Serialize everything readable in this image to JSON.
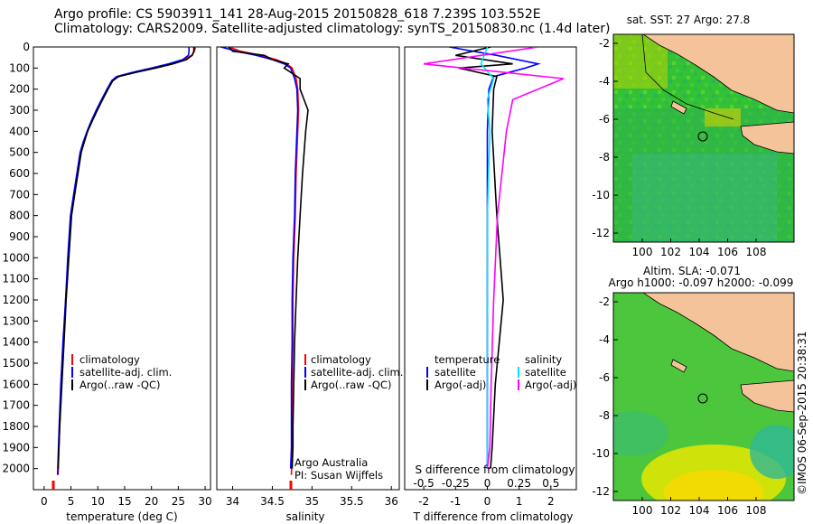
{
  "titles": {
    "line1": "Argo profile: CS 5903911_141 28-Aug-2015 20150828_618 7.239S 103.552E",
    "line2": "Climatology: CARS2009. Satellite-adjusted climatology: synTS_20150830.nc (1.4d later)"
  },
  "colors": {
    "climatology": "#ff0000",
    "satellite": "#0000ff",
    "argo": "#000000",
    "sat_salinity": "#00e5ff",
    "argo_salinity_diff": "#ff00ff",
    "land": "#f5c39a"
  },
  "panels": {
    "temperature": {
      "xlabel": "temperature (deg C)",
      "xticks": [
        "0",
        "5",
        "10",
        "15",
        "20",
        "25",
        "30"
      ],
      "legend": [
        "climatology",
        "satellite-adj. clim.",
        "Argo(..raw -QC)"
      ]
    },
    "salinity": {
      "xlabel": "salinity",
      "xticks": [
        "34",
        "34.5",
        "35",
        "35.5",
        "36"
      ],
      "legend": [
        "climatology",
        "satellite-adj. clim.",
        "Argo(..raw -QC)"
      ],
      "note1": "Argo Australia",
      "note2": "PI: Susan Wijffels"
    },
    "difference": {
      "xlabel": "T difference from climatology",
      "xticks": [
        "-2",
        "-1",
        "0",
        "1",
        "2"
      ],
      "top_label": "S difference from climatology",
      "top_ticks": [
        "-0.5",
        "-0.25",
        "0",
        "0.25",
        "0.5"
      ],
      "legend_temp_title": "temperature",
      "legend_sal_title": "salinity",
      "legend_temp": [
        "satellite",
        "Argo(-adj)"
      ],
      "legend_sal": [
        "satellite",
        "Argo(-adj)"
      ]
    },
    "yticks": [
      "0",
      "100",
      "200",
      "300",
      "400",
      "500",
      "600",
      "700",
      "800",
      "900",
      "1000",
      "1100",
      "1200",
      "1300",
      "1400",
      "1500",
      "1600",
      "1700",
      "1800",
      "1900",
      "2000"
    ],
    "map_sst": {
      "title": "sat. SST: 27 Argo: 27.8",
      "yticks": [
        "-2",
        "-4",
        "-6",
        "-8",
        "-10",
        "-12"
      ],
      "xticks": [
        "100",
        "102",
        "104",
        "106",
        "108"
      ]
    },
    "map_sla": {
      "title1": "Altim. SLA: -0.071",
      "title2": "Argo h1000: -0.097 h2000: -0.099",
      "yticks": [
        "-2",
        "-4",
        "-6",
        "-8",
        "-10",
        "-12"
      ],
      "xticks": [
        "100",
        "102",
        "104",
        "106",
        "108"
      ]
    },
    "footer": "©IMOS 06-Sep-2015 20:38:31"
  },
  "chart_data": [
    {
      "type": "line",
      "xlabel": "temperature (deg C)",
      "xlim": [
        -2,
        31
      ],
      "ylim": [
        2100,
        0
      ],
      "series": [
        {
          "name": "climatology",
          "x": [
            28.2,
            28.0,
            27.5,
            26.0,
            23.5,
            20.5,
            17.0,
            13.8,
            12.7,
            11.8,
            10.8,
            9.8,
            8.9,
            8.1,
            7.4,
            6.8,
            6.2,
            5.6,
            5.0,
            4.5,
            4.0,
            3.6,
            3.2,
            2.9,
            2.6
          ],
          "y": [
            0,
            20,
            40,
            60,
            80,
            100,
            120,
            140,
            160,
            200,
            250,
            300,
            350,
            400,
            450,
            500,
            600,
            700,
            800,
            1000,
            1200,
            1400,
            1600,
            1800,
            2030
          ]
        },
        {
          "name": "satellite-adj. clim.",
          "x": [
            27.0,
            27.0,
            26.9,
            25.8,
            23.2,
            20.0,
            16.5,
            13.5,
            12.6,
            11.7,
            10.7,
            9.7,
            8.8,
            8.0,
            7.3,
            6.7,
            6.1,
            5.5,
            4.9,
            4.4,
            4.0,
            3.5,
            3.1,
            2.8,
            2.5
          ],
          "y": [
            0,
            20,
            40,
            60,
            80,
            100,
            120,
            140,
            160,
            200,
            250,
            300,
            350,
            400,
            450,
            500,
            600,
            700,
            800,
            1000,
            1200,
            1400,
            1600,
            1800,
            2030
          ]
        },
        {
          "name": "Argo(..raw -QC)",
          "x": [
            27.9,
            27.9,
            27.6,
            26.5,
            24.0,
            20.8,
            17.2,
            13.9,
            12.8,
            11.9,
            10.9,
            9.9,
            9.0,
            8.1,
            7.5,
            6.9,
            6.3,
            5.7,
            5.1,
            4.6,
            4.1,
            3.7,
            3.3,
            2.9,
            2.6
          ],
          "y": [
            0,
            20,
            40,
            60,
            80,
            100,
            120,
            140,
            160,
            200,
            250,
            300,
            350,
            400,
            450,
            500,
            600,
            700,
            800,
            1000,
            1200,
            1400,
            1600,
            1800,
            2000
          ]
        }
      ]
    },
    {
      "type": "line",
      "xlabel": "salinity",
      "xlim": [
        33.8,
        36.1
      ],
      "ylim": [
        2100,
        0
      ],
      "series": [
        {
          "name": "climatology",
          "x": [
            33.95,
            34.1,
            34.35,
            34.55,
            34.68,
            34.75,
            34.8,
            34.82,
            34.83,
            34.82,
            34.8,
            34.79,
            34.77,
            34.76,
            34.76,
            34.75,
            34.75,
            34.75,
            34.74
          ],
          "y": [
            0,
            20,
            40,
            60,
            80,
            100,
            150,
            200,
            300,
            400,
            600,
            800,
            1000,
            1200,
            1400,
            1600,
            1800,
            1900,
            2030
          ]
        },
        {
          "name": "satellite-adj. clim.",
          "x": [
            33.85,
            34.05,
            34.3,
            34.5,
            34.65,
            34.73,
            34.78,
            34.81,
            34.82,
            34.81,
            34.79,
            34.78,
            34.76,
            34.75,
            34.75,
            34.74,
            34.74,
            34.74,
            34.73
          ],
          "y": [
            0,
            20,
            40,
            60,
            80,
            100,
            150,
            200,
            300,
            400,
            600,
            800,
            1000,
            1200,
            1400,
            1600,
            1800,
            1900,
            2000
          ]
        },
        {
          "name": "Argo(..raw -QC)",
          "x": [
            33.95,
            34.0,
            34.4,
            34.5,
            34.7,
            34.65,
            34.85,
            34.85,
            34.95,
            34.92,
            34.88,
            34.85,
            34.82,
            34.8,
            34.78,
            34.77,
            34.76,
            34.76,
            34.75
          ],
          "y": [
            0,
            20,
            40,
            60,
            80,
            100,
            150,
            200,
            300,
            400,
            600,
            800,
            1000,
            1200,
            1400,
            1600,
            1800,
            1900,
            2000
          ]
        }
      ]
    },
    {
      "type": "line",
      "xlabel": "T difference from climatology",
      "xlim": [
        -2.6,
        2.8
      ],
      "ylim": [
        2100,
        0
      ],
      "series": [
        {
          "name": "satellite",
          "x": [
            -1.2,
            0.3,
            1.6,
            1.2,
            0.2,
            0.05,
            0.0,
            0.0,
            0.0,
            0.0,
            0.0,
            0.0
          ],
          "y": [
            0,
            40,
            80,
            100,
            140,
            200,
            400,
            800,
            1200,
            1600,
            1900,
            2000
          ]
        },
        {
          "name": "Argo(-adj)",
          "x": [
            0.1,
            -1.0,
            0.8,
            -0.9,
            0.3,
            0.2,
            0.15,
            0.3,
            0.5,
            0.25,
            0.15,
            0.1
          ],
          "y": [
            0,
            40,
            80,
            100,
            140,
            200,
            400,
            800,
            1200,
            1600,
            1900,
            2000
          ]
        },
        {
          "name": "satellite S",
          "x": [
            0.0,
            -0.05,
            0.05,
            0.0,
            0.02,
            0.0,
            0.0,
            0.0,
            0.0,
            0.0
          ],
          "y": [
            0,
            80,
            150,
            250,
            400,
            800,
            1200,
            1600,
            1900,
            2000
          ]
        },
        {
          "name": "Argo(-adj) S",
          "x": [
            0.4,
            -0.5,
            0.6,
            0.2,
            0.15,
            0.08,
            0.05,
            0.03,
            0.02,
            0.0
          ],
          "y": [
            0,
            80,
            150,
            250,
            400,
            800,
            1200,
            1600,
            1900,
            2000
          ]
        }
      ]
    }
  ]
}
